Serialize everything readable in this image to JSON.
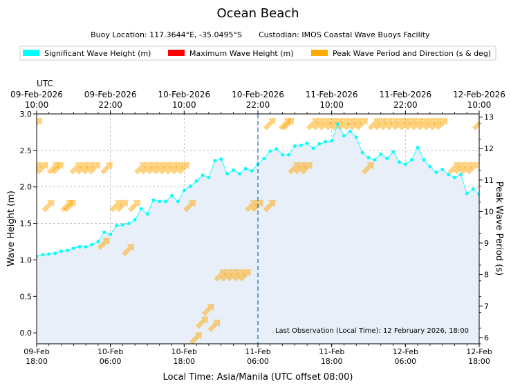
{
  "chart_data": {
    "type": "line",
    "title": "Ocean Beach",
    "subtitle": {
      "location": "Buoy Location: 117.3644°E, -35.0495°S",
      "custodian": "Custodian: IMOS Coastal Wave Buoys Facility"
    },
    "legend": [
      {
        "label": "Significant Wave Height (m)",
        "color": "#00ffff"
      },
      {
        "label": "Maximum Wave Height (m)",
        "color": "#ff0000"
      },
      {
        "label": "Peak Wave Period and Direction (s & deg)",
        "color": "#ffa500"
      }
    ],
    "utc_label": "UTC",
    "top_ticks": [
      {
        "date": "09-Feb-2026",
        "time": "10:00"
      },
      {
        "date": "09-Feb-2026",
        "time": "22:00"
      },
      {
        "date": "10-Feb-2026",
        "time": "10:00"
      },
      {
        "date": "10-Feb-2026",
        "time": "22:00"
      },
      {
        "date": "11-Feb-2026",
        "time": "10:00"
      },
      {
        "date": "11-Feb-2026",
        "time": "22:00"
      },
      {
        "date": "12-Feb-2026",
        "time": "10:00"
      }
    ],
    "bottom_ticks": [
      {
        "date": "09-Feb",
        "time": "18:00"
      },
      {
        "date": "10-Feb",
        "time": "06:00"
      },
      {
        "date": "10-Feb",
        "time": "18:00"
      },
      {
        "date": "11-Feb",
        "time": "06:00"
      },
      {
        "date": "11-Feb",
        "time": "18:00"
      },
      {
        "date": "12-Feb",
        "time": "06:00"
      },
      {
        "date": "12-Feb",
        "time": "18:00"
      }
    ],
    "xlabel": "Local Time: Asia/Manila (UTC offset 08:00)",
    "ylabel": "Wave Height (m)",
    "y2label": "Peak Wave Period (s)",
    "xlim_hours": [
      0,
      72
    ],
    "ylim": [
      -0.15,
      3.0
    ],
    "y_ticks": [
      "0.0",
      "0.5",
      "1.0",
      "1.5",
      "2.0",
      "2.5",
      "3.0"
    ],
    "y2lim": [
      5.8,
      13.1
    ],
    "y2_ticks": [
      "6",
      "7",
      "8",
      "9",
      "10",
      "11",
      "12",
      "13"
    ],
    "last_observation_hour": 36,
    "annotation": "Last Observation (Local Time): 12 February 2026, 18:00",
    "series": [
      {
        "name": "Significant Wave Height (m)",
        "interval_hours": 1,
        "start_hour": 0,
        "values": [
          1.05,
          1.07,
          1.08,
          1.09,
          1.12,
          1.13,
          1.16,
          1.18,
          1.18,
          1.21,
          1.25,
          1.38,
          1.35,
          1.47,
          1.48,
          1.5,
          1.55,
          1.7,
          1.63,
          1.82,
          1.8,
          1.8,
          1.88,
          1.8,
          1.95,
          2.01,
          2.08,
          2.16,
          2.13,
          2.36,
          2.38,
          2.18,
          2.23,
          2.18,
          2.25,
          2.22,
          2.31,
          2.39,
          2.49,
          2.52,
          2.44,
          2.44,
          2.56,
          2.57,
          2.6,
          2.53,
          2.59,
          2.62,
          2.63,
          2.86,
          2.7,
          2.76,
          2.68,
          2.47,
          2.4,
          2.37,
          2.45,
          2.39,
          2.48,
          2.34,
          2.31,
          2.37,
          2.54,
          2.37,
          2.28,
          2.2,
          2.24,
          2.17,
          2.13,
          2.17,
          1.91,
          1.97,
          1.9
        ]
      },
      {
        "name": "Peak Wave Period and Direction (s & deg)",
        "unit": "s",
        "direction_deg": 225,
        "points": [
          {
            "h": 0,
            "p": 12.8
          },
          {
            "h": 0,
            "p": 11.4
          },
          {
            "h": 1,
            "p": 11.4
          },
          {
            "h": 2,
            "p": 10.2
          },
          {
            "h": 2.8,
            "p": 11.4
          },
          {
            "h": 3.5,
            "p": 11.4
          },
          {
            "h": 5,
            "p": 10.2
          },
          {
            "h": 5.5,
            "p": 10.2
          },
          {
            "h": 6.5,
            "p": 11.4
          },
          {
            "h": 7.5,
            "p": 11.4
          },
          {
            "h": 8.5,
            "p": 11.4
          },
          {
            "h": 9.5,
            "p": 11.4
          },
          {
            "h": 11,
            "p": 9.0
          },
          {
            "h": 11.5,
            "p": 11.4
          },
          {
            "h": 13,
            "p": 10.2
          },
          {
            "h": 14,
            "p": 10.2
          },
          {
            "h": 15,
            "p": 8.8
          },
          {
            "h": 16,
            "p": 10.2
          },
          {
            "h": 17,
            "p": 11.4
          },
          {
            "h": 18,
            "p": 11.4
          },
          {
            "h": 19,
            "p": 11.4
          },
          {
            "h": 20,
            "p": 11.4
          },
          {
            "h": 21,
            "p": 11.4
          },
          {
            "h": 22,
            "p": 11.4
          },
          {
            "h": 23,
            "p": 11.4
          },
          {
            "h": 24,
            "p": 11.4
          },
          {
            "h": 25,
            "p": 10.2
          },
          {
            "h": 26,
            "p": 6.0
          },
          {
            "h": 27,
            "p": 6.5
          },
          {
            "h": 28,
            "p": 6.9
          },
          {
            "h": 29,
            "p": 6.4
          },
          {
            "h": 30,
            "p": 8.0
          },
          {
            "h": 31,
            "p": 8.0
          },
          {
            "h": 32,
            "p": 8.0
          },
          {
            "h": 33,
            "p": 8.0
          },
          {
            "h": 34,
            "p": 8.0
          },
          {
            "h": 35,
            "p": 10.2
          },
          {
            "h": 36,
            "p": 10.2
          },
          {
            "h": 38,
            "p": 10.2
          },
          {
            "h": 38,
            "p": 12.8
          },
          {
            "h": 40.5,
            "p": 12.8
          },
          {
            "h": 41,
            "p": 12.8
          },
          {
            "h": 42,
            "p": 11.4
          },
          {
            "h": 43,
            "p": 11.4
          },
          {
            "h": 44,
            "p": 11.4
          },
          {
            "h": 45,
            "p": 12.8
          },
          {
            "h": 46,
            "p": 12.8
          },
          {
            "h": 47,
            "p": 12.8
          },
          {
            "h": 48,
            "p": 12.8
          },
          {
            "h": 49,
            "p": 12.8
          },
          {
            "h": 50,
            "p": 12.8
          },
          {
            "h": 51,
            "p": 12.8
          },
          {
            "h": 52,
            "p": 12.8
          },
          {
            "h": 53,
            "p": 12.8
          },
          {
            "h": 54,
            "p": 11.4
          },
          {
            "h": 55,
            "p": 12.8
          },
          {
            "h": 56,
            "p": 12.8
          },
          {
            "h": 57,
            "p": 12.8
          },
          {
            "h": 58,
            "p": 12.8
          },
          {
            "h": 59,
            "p": 12.8
          },
          {
            "h": 60,
            "p": 12.8
          },
          {
            "h": 61,
            "p": 12.8
          },
          {
            "h": 62,
            "p": 12.8
          },
          {
            "h": 63,
            "p": 12.8
          },
          {
            "h": 64,
            "p": 12.8
          },
          {
            "h": 65,
            "p": 12.8
          },
          {
            "h": 66,
            "p": 12.8
          },
          {
            "h": 68,
            "p": 11.4
          },
          {
            "h": 69,
            "p": 11.4
          },
          {
            "h": 70,
            "p": 11.4
          },
          {
            "h": 71,
            "p": 11.4
          },
          {
            "h": 72,
            "p": 12.8
          }
        ]
      }
    ]
  }
}
